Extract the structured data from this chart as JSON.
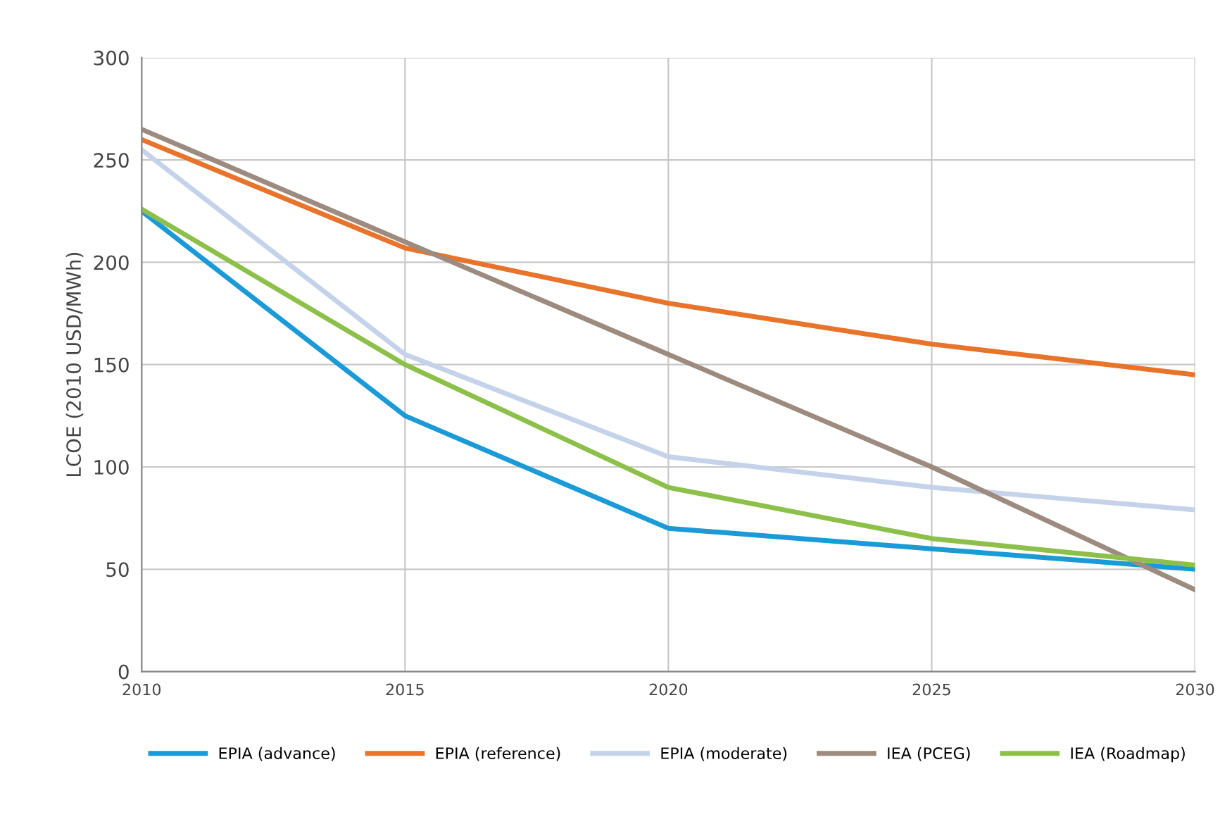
{
  "chart_data": {
    "type": "line",
    "ylabel": "LCOE (2010 USD/MWh)",
    "x": [
      2010,
      2015,
      2020,
      2025,
      2030
    ],
    "xlim": [
      2010,
      2030
    ],
    "xticks": [
      2010,
      2015,
      2020,
      2025,
      2030
    ],
    "ylim": [
      0,
      300
    ],
    "yticks": [
      0,
      50,
      100,
      150,
      200,
      250,
      300
    ],
    "grid": true,
    "legend": "bottom",
    "marker": "none",
    "line_style": "solid",
    "series": [
      {
        "name": "EPIA (advance)",
        "color": "#1a9ad6",
        "values": [
          225,
          125,
          70,
          60,
          50
        ]
      },
      {
        "name": "EPIA (reference)",
        "color": "#e8732a",
        "values": [
          260,
          207,
          180,
          160,
          145
        ]
      },
      {
        "name": "EPIA (moderate)",
        "color": "#c5d3ea",
        "values": [
          255,
          155,
          105,
          90,
          79
        ]
      },
      {
        "name": "IEA (PCEG)",
        "color": "#9c8b7e",
        "values": [
          265,
          210,
          155,
          100,
          40
        ]
      },
      {
        "name": "IEA (Roadmap)",
        "color": "#8dc04a",
        "values": [
          226,
          150,
          90,
          65,
          52
        ]
      }
    ]
  }
}
